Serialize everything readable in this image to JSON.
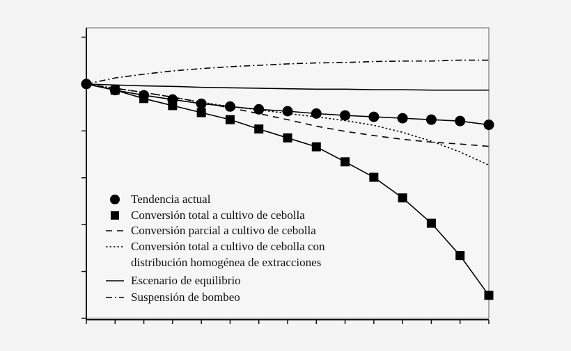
{
  "chart_data": {
    "type": "line",
    "title": "",
    "xlabel": "",
    "ylabel": "",
    "x": [
      0,
      1,
      2,
      3,
      4,
      5,
      6,
      7,
      8,
      9,
      10,
      11,
      12,
      13,
      14
    ],
    "xlim": [
      0,
      14
    ],
    "ylim": [
      0,
      6.2
    ],
    "y_ticks": [
      0,
      1,
      2,
      3,
      4,
      5,
      6
    ],
    "x_tick_labels_shown": false,
    "y_tick_labels_shown": false,
    "grid": false,
    "legend_position": "bottom-left",
    "color": "#000000",
    "series": [
      {
        "name": "Tendencia actual",
        "style": "solid-circle-markers",
        "values": [
          5.0,
          4.87,
          4.76,
          4.67,
          4.58,
          4.52,
          4.46,
          4.42,
          4.37,
          4.33,
          4.3,
          4.27,
          4.24,
          4.21,
          4.13
        ]
      },
      {
        "name": "Conversión total a cultivo de cebolla",
        "style": "solid-square-markers",
        "values": [
          5.0,
          4.87,
          4.69,
          4.54,
          4.39,
          4.24,
          4.04,
          3.85,
          3.66,
          3.34,
          3.01,
          2.57,
          2.03,
          1.34,
          0.49
        ]
      },
      {
        "name": "Conversión parcial a cultivo de cebolla",
        "style": "dashed",
        "values": [
          5.0,
          4.91,
          4.82,
          4.72,
          4.61,
          4.49,
          4.37,
          4.24,
          4.1,
          3.99,
          3.9,
          3.82,
          3.76,
          3.72,
          3.67
        ]
      },
      {
        "name": "Conversión total a cultivo de cebolla con distribución homogénea de extracciones",
        "name_lines": [
          "Conversión total a cultivo de cebolla con",
          "distribución homogénea de extracciones"
        ],
        "style": "dotted",
        "values": [
          5.0,
          4.91,
          4.82,
          4.72,
          4.61,
          4.52,
          4.45,
          4.37,
          4.3,
          4.22,
          4.12,
          3.97,
          3.78,
          3.55,
          3.27
        ]
      },
      {
        "name": "Escenario de equilibrio",
        "style": "solid",
        "values": [
          5.0,
          4.98,
          4.96,
          4.95,
          4.93,
          4.92,
          4.91,
          4.9,
          4.89,
          4.89,
          4.88,
          4.88,
          4.87,
          4.87,
          4.87
        ]
      },
      {
        "name": "Suspensión de bombeo",
        "style": "dash-dot",
        "values": [
          5.0,
          5.13,
          5.21,
          5.28,
          5.33,
          5.37,
          5.4,
          5.43,
          5.45,
          5.46,
          5.48,
          5.49,
          5.49,
          5.51,
          5.51
        ]
      }
    ]
  }
}
